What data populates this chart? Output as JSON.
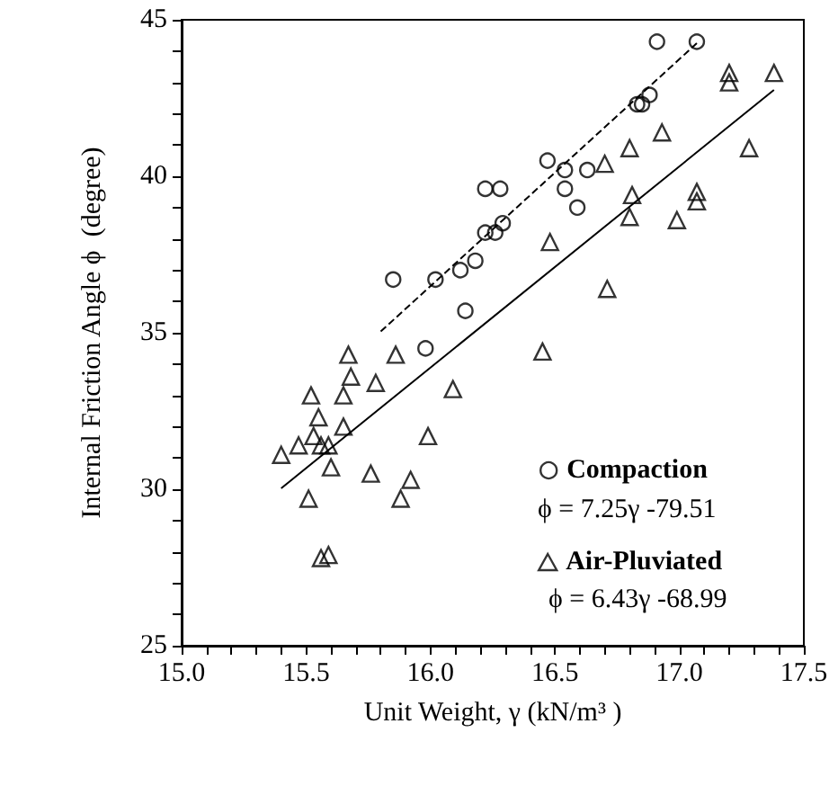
{
  "chart_data": {
    "type": "scatter",
    "xlabel": "Unit Weight, γ (kN/m³ )",
    "ylabel": "Internal Friction Angle ϕ  (degree)",
    "xlim": [
      15,
      17.5
    ],
    "ylim": [
      25,
      45
    ],
    "xticks": [
      {
        "value": 15,
        "label": "15.0"
      },
      {
        "value": 15.1,
        "label": null
      },
      {
        "value": 15.2,
        "label": null
      },
      {
        "value": 15.3,
        "label": null
      },
      {
        "value": 15.4,
        "label": null
      },
      {
        "value": 15.5,
        "label": "15.5"
      },
      {
        "value": 15.6,
        "label": null
      },
      {
        "value": 15.7,
        "label": null
      },
      {
        "value": 15.8,
        "label": null
      },
      {
        "value": 15.9,
        "label": null
      },
      {
        "value": 16,
        "label": "16.0"
      },
      {
        "value": 16.1,
        "label": null
      },
      {
        "value": 16.2,
        "label": null
      },
      {
        "value": 16.3,
        "label": null
      },
      {
        "value": 16.4,
        "label": null
      },
      {
        "value": 16.5,
        "label": "16.5"
      },
      {
        "value": 16.6,
        "label": null
      },
      {
        "value": 16.7,
        "label": null
      },
      {
        "value": 16.8,
        "label": null
      },
      {
        "value": 16.9,
        "label": null
      },
      {
        "value": 17,
        "label": "17.0"
      },
      {
        "value": 17.1,
        "label": null
      },
      {
        "value": 17.2,
        "label": null
      },
      {
        "value": 17.3,
        "label": null
      },
      {
        "value": 17.4,
        "label": null
      },
      {
        "value": 17.5,
        "label": "17.5"
      }
    ],
    "yticks": [
      25,
      {
        "value": 26,
        "label": null
      },
      {
        "value": 27,
        "label": null
      },
      {
        "value": 28,
        "label": null
      },
      {
        "value": 29,
        "label": null
      },
      30,
      {
        "value": 31,
        "label": null
      },
      {
        "value": 32,
        "label": null
      },
      {
        "value": 33,
        "label": null
      },
      {
        "value": 34,
        "label": null
      },
      35,
      {
        "value": 36,
        "label": null
      },
      {
        "value": 37,
        "label": null
      },
      {
        "value": 38,
        "label": null
      },
      {
        "value": 39,
        "label": null
      },
      40,
      {
        "value": 41,
        "label": null
      },
      {
        "value": 42,
        "label": null
      },
      {
        "value": 43,
        "label": null
      },
      {
        "value": 44,
        "label": null
      },
      45
    ],
    "grid": false,
    "legend": "bottom right",
    "annotations": [
      "ϕ = 7.25γ -79.51",
      "ϕ = 6.43γ -68.99"
    ],
    "series": [
      {
        "name": "Compaction",
        "marker": "circle",
        "color": "#000000",
        "x": [
          16.22,
          16.28,
          16.22,
          16.26,
          16.29,
          15.85,
          16.02,
          16.12,
          16.18,
          16.14,
          15.98,
          16.91,
          17.07,
          16.83,
          16.85,
          16.88,
          16.47,
          16.54,
          16.63,
          16.54,
          16.59
        ],
        "values": [
          39.6,
          39.6,
          38.2,
          38.2,
          38.5,
          36.7,
          36.7,
          37.0,
          37.3,
          35.7,
          34.5,
          44.3,
          44.3,
          42.3,
          42.3,
          42.6,
          40.5,
          40.2,
          40.2,
          39.6,
          39.0
        ]
      },
      {
        "name": "Air-Pluviated",
        "marker": "triangle",
        "color": "#000000",
        "x": [
          17.2,
          17.2,
          17.38,
          16.93,
          16.8,
          17.28,
          16.7,
          16.81,
          16.8,
          17.07,
          17.07,
          16.99,
          16.48,
          16.71,
          16.45,
          15.67,
          15.86,
          15.68,
          15.78,
          15.52,
          15.65,
          16.09,
          15.55,
          15.65,
          15.53,
          15.47,
          15.56,
          15.59,
          15.4,
          15.99,
          15.6,
          15.76,
          15.92,
          15.51,
          15.88,
          15.56,
          15.59
        ],
        "values": [
          43.3,
          43.0,
          43.3,
          41.4,
          40.9,
          40.9,
          40.4,
          39.4,
          38.7,
          39.5,
          39.2,
          38.6,
          37.9,
          36.4,
          34.4,
          34.3,
          34.3,
          33.6,
          33.4,
          33.0,
          33.0,
          33.2,
          32.3,
          32.0,
          31.7,
          31.4,
          31.4,
          31.4,
          31.1,
          31.7,
          30.7,
          30.5,
          30.3,
          29.7,
          29.7,
          27.8,
          27.9
        ]
      },
      {
        "type": "line",
        "marker": "none",
        "line_style": "dashed",
        "color": "#000000",
        "x": [
          15.8,
          17.07
        ],
        "values": [
          35.04,
          44.25
        ]
      },
      {
        "type": "line",
        "marker": "none",
        "line_style": "solid",
        "color": "#000000",
        "x": [
          15.4,
          17.38
        ],
        "values": [
          30.03,
          42.76
        ]
      }
    ]
  }
}
